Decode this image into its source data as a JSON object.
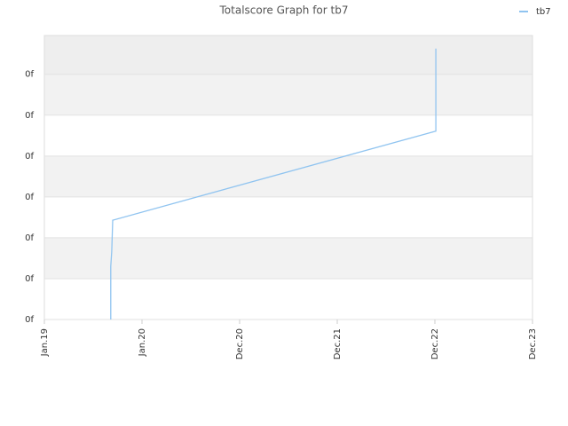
{
  "chart_data": {
    "type": "line",
    "title": "Totalscore Graph for tb7",
    "x": [
      0.68,
      0.68,
      0.69,
      0.7,
      4.01,
      4.01
    ],
    "series": [
      {
        "name": "tb7",
        "color": "#90c4f0",
        "values": [
          0,
          1.3,
          1.67,
          2.43,
          4.61,
          6.63
        ]
      }
    ],
    "xlim": [
      0,
      5
    ],
    "xticks": [
      {
        "value": 0,
        "label": "Jan.19"
      },
      {
        "value": 1,
        "label": "Jan.20"
      },
      {
        "value": 2,
        "label": "Dec.20"
      },
      {
        "value": 3,
        "label": "Dec.21"
      },
      {
        "value": 4,
        "label": "Dec.22"
      },
      {
        "value": 5,
        "label": "Dec.23"
      }
    ],
    "ylim": [
      0,
      6.95
    ],
    "yticks": [
      {
        "value": 0,
        "label": "0f"
      },
      {
        "value": 1,
        "label": "0f"
      },
      {
        "value": 2,
        "label": "0f"
      },
      {
        "value": 3,
        "label": "0f"
      },
      {
        "value": 4,
        "label": "0f"
      },
      {
        "value": 5,
        "label": "0f"
      },
      {
        "value": 6,
        "label": "0f"
      }
    ],
    "grid": true,
    "legend": "top-right"
  }
}
